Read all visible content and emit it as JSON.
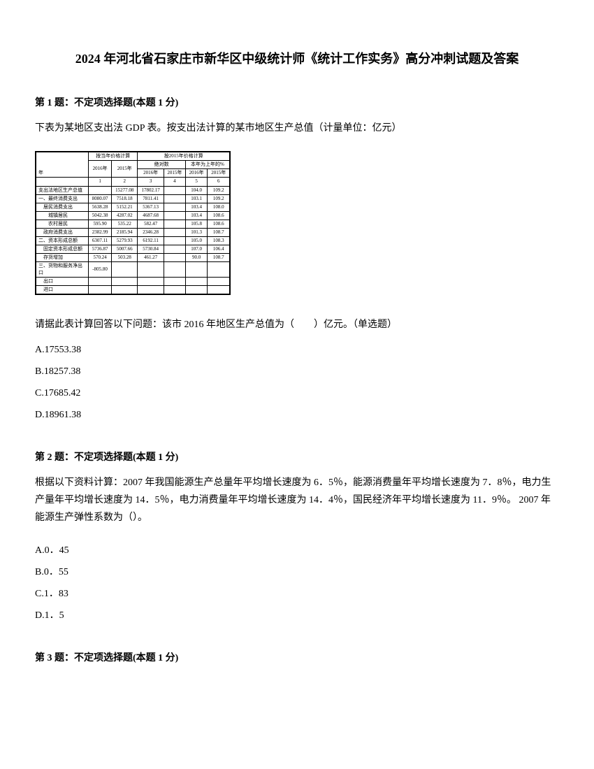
{
  "title": "2024 年河北省石家庄市新华区中级统计师《统计工作实务》高分冲刺试题及答案",
  "q1": {
    "header": "第 1 题：不定项选择题(本题 1 分)",
    "text": "下表为某地区支出法 GDP 表。按支出法计算的某市地区生产总值（计量单位：亿元）",
    "table": {
      "header1": "按当年价格计算",
      "header2": "按2015年价格计算",
      "sub1": "绝对数",
      "sub2": "本年为上年的%",
      "year2016": "2016年",
      "year2015": "2015年",
      "col_m": "年",
      "col1": "1",
      "col2": "2",
      "col3": "3",
      "col4": "4",
      "col5": "5",
      "col6": "6",
      "rows": [
        {
          "name": "支出法地区生产总值",
          "v1": "",
          "v2": "15277.08",
          "v3": "17802.17",
          "v4": "",
          "v5": "104.0",
          "v6": "109.2"
        },
        {
          "name": "一、最终消费支出",
          "v1": "8080.07",
          "v2": "7518.18",
          "v3": "7811.41",
          "v4": "",
          "v5": "103.1",
          "v6": "109.2"
        },
        {
          "name": "　居民消费支出",
          "v1": "5638.28",
          "v2": "5152.21",
          "v3": "5367.13",
          "v4": "",
          "v5": "103.4",
          "v6": "108.0"
        },
        {
          "name": "　　城镇居民",
          "v1": "5042.38",
          "v2": "4287.02",
          "v3": "4687.68",
          "v4": "",
          "v5": "103.4",
          "v6": "108.6"
        },
        {
          "name": "　　农村居民",
          "v1": "595.90",
          "v2": "535.22",
          "v3": "582.47",
          "v4": "",
          "v5": "105.8",
          "v6": "108.6"
        },
        {
          "name": "　政府消费支出",
          "v1": "2382.99",
          "v2": "2185.94",
          "v3": "2346.28",
          "v4": "",
          "v5": "101.3",
          "v6": "108.7"
        },
        {
          "name": "二、资本形成总额",
          "v1": "6307.11",
          "v2": "5279.93",
          "v3": "6192.11",
          "v4": "",
          "v5": "105.0",
          "v6": "108.3"
        },
        {
          "name": "　固定资本形成总额",
          "v1": "5736.87",
          "v2": "5007.66",
          "v3": "5730.84",
          "v4": "",
          "v5": "107.0",
          "v6": "106.4"
        },
        {
          "name": "　存货增加",
          "v1": "570.24",
          "v2": "503.28",
          "v3": "461.27",
          "v4": "",
          "v5": "90.0",
          "v6": "108.7"
        },
        {
          "name": "三、货物和服务净出口",
          "v1": "-805.80",
          "v2": "",
          "v3": "",
          "v4": "",
          "v5": "",
          "v6": ""
        },
        {
          "name": "　出口",
          "v1": "",
          "v2": "",
          "v3": "",
          "v4": "",
          "v5": "",
          "v6": ""
        },
        {
          "name": "　进口",
          "v1": "",
          "v2": "",
          "v3": "",
          "v4": "",
          "v5": "",
          "v6": ""
        }
      ]
    },
    "prompt": "请据此表计算回答以下问题：该市 2016 年地区生产总值为（　　）亿元。（单选题）",
    "optA": "A.17553.38",
    "optB": "B.18257.38",
    "optC": "C.17685.42",
    "optD": "D.18961.38"
  },
  "q2": {
    "header": "第 2 题：不定项选择题(本题 1 分)",
    "text": "根据以下资料计算：2007 年我国能源生产总量年平均增长速度为 6．5％，能源消费量年平均增长速度为 7．8％，电力生产量年平均增长速度为 14．5％，电力消费量年平均增长速度为 14．4％，国民经济年平均增长速度为 11．9％。 2007 年能源生产弹性系数为（）。",
    "optA": "A.0．45",
    "optB": "B.0．55",
    "optC": "C.1．83",
    "optD": "D.1．5"
  },
  "q3": {
    "header": "第 3 题：不定项选择题(本题 1 分)"
  }
}
